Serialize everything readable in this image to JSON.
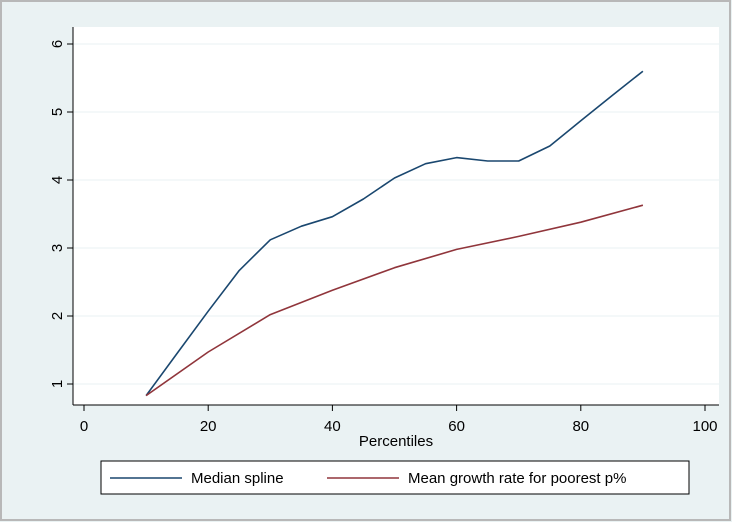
{
  "chart_data": {
    "type": "line",
    "title": "",
    "xlabel": "Percentiles",
    "ylabel": "",
    "xlim": [
      0,
      100
    ],
    "ylim": [
      0.7,
      6.2
    ],
    "xticks": [
      0,
      20,
      40,
      60,
      80,
      100
    ],
    "yticks": [
      1,
      2,
      3,
      4,
      5,
      6
    ],
    "grid": "horizontal",
    "legend_position": "bottom",
    "series": [
      {
        "name": "Median spline",
        "color": "#1a476f",
        "x": [
          10,
          15,
          20,
          25,
          30,
          35,
          40,
          45,
          50,
          55,
          60,
          65,
          70,
          75,
          80,
          85,
          90
        ],
        "values": [
          0.83,
          1.45,
          2.07,
          2.67,
          3.12,
          3.32,
          3.46,
          3.72,
          4.03,
          4.24,
          4.33,
          4.28,
          4.28,
          4.5,
          4.87,
          5.24,
          5.6
        ]
      },
      {
        "name": "Mean growth rate for poorest p%",
        "color": "#90353b",
        "x": [
          10,
          20,
          30,
          40,
          50,
          60,
          70,
          80,
          90
        ],
        "values": [
          0.83,
          1.47,
          2.02,
          2.38,
          2.71,
          2.98,
          3.17,
          3.38,
          3.63
        ]
      }
    ]
  }
}
